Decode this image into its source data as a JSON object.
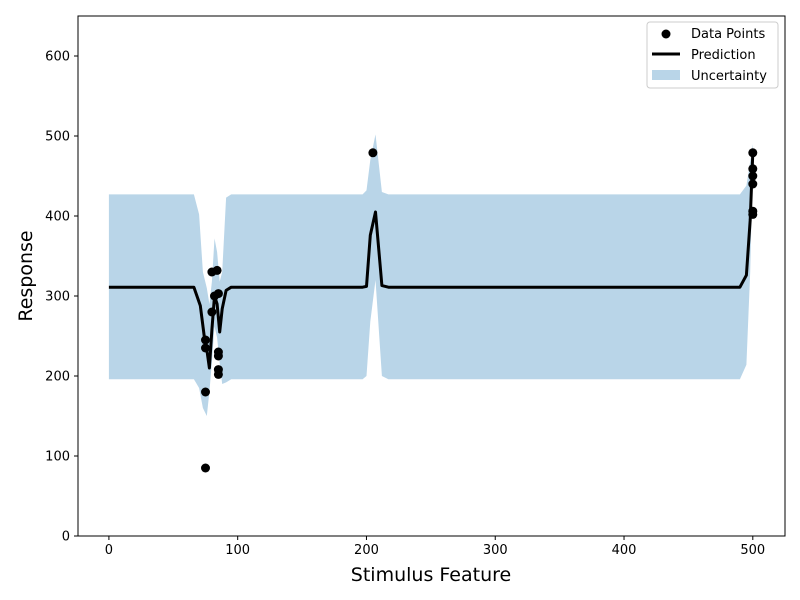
{
  "chart_data": {
    "type": "scatter",
    "xlabel": "Stimulus Feature",
    "ylabel": "Response",
    "xlim": [
      -24,
      525
    ],
    "ylim": [
      0,
      650
    ],
    "xticks": [
      0,
      100,
      200,
      300,
      400,
      500
    ],
    "yticks": [
      0,
      100,
      200,
      300,
      400,
      500,
      600
    ],
    "grid": false,
    "legend_position": "top-right",
    "series": [
      {
        "name": "Data Points",
        "kind": "scatter",
        "color": "#000000",
        "points": [
          [
            75,
            85
          ],
          [
            75,
            180
          ],
          [
            75,
            235
          ],
          [
            75,
            245
          ],
          [
            80,
            280
          ],
          [
            80,
            330
          ],
          [
            82,
            300
          ],
          [
            84,
            332
          ],
          [
            85,
            303
          ],
          [
            85,
            230
          ],
          [
            85,
            225
          ],
          [
            85,
            208
          ],
          [
            85,
            202
          ],
          [
            205,
            479
          ],
          [
            500,
            479
          ],
          [
            500,
            459
          ],
          [
            500,
            450
          ],
          [
            500,
            440
          ],
          [
            500,
            406
          ],
          [
            500,
            402
          ]
        ]
      },
      {
        "name": "Prediction",
        "kind": "line",
        "color": "#000000",
        "x": [
          0,
          66,
          71,
          74,
          76,
          78,
          80,
          82,
          84,
          86,
          88,
          91,
          95,
          100,
          197,
          200,
          203,
          207,
          212,
          217,
          490,
          495,
          498,
          500
        ],
        "y": [
          311,
          311,
          288,
          250,
          233,
          210,
          258,
          300,
          290,
          255,
          284,
          307,
          311,
          311,
          311,
          312,
          376,
          405,
          313,
          311,
          311,
          326,
          395,
          479
        ]
      },
      {
        "name": "Uncertainty",
        "kind": "band",
        "color": "#b9d5e8",
        "x": [
          0,
          66,
          70,
          73,
          76,
          78,
          80,
          82,
          84,
          86,
          88,
          91,
          95,
          100,
          197,
          200,
          203,
          207,
          212,
          217,
          490,
          495,
          498,
          500
        ],
        "upper": [
          427,
          427,
          402,
          330,
          310,
          290,
          318,
          372,
          355,
          318,
          330,
          423,
          427,
          427,
          427,
          432,
          470,
          502,
          430,
          427,
          427,
          438,
          468,
          490
        ],
        "lower": [
          196,
          196,
          185,
          160,
          150,
          180,
          218,
          262,
          248,
          216,
          190,
          192,
          196,
          196,
          196,
          200,
          268,
          320,
          200,
          196,
          196,
          214,
          330,
          470
        ]
      }
    ]
  }
}
